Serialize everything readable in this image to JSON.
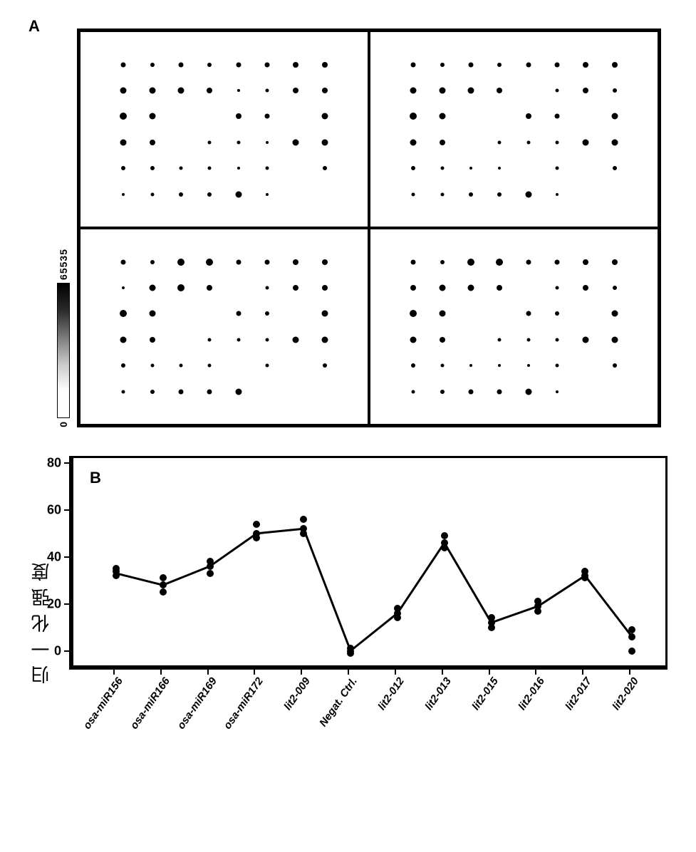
{
  "panelA": {
    "label": "A",
    "colorbar": {
      "min": "0",
      "max": "65535"
    },
    "grid": {
      "cols": 8,
      "rows": 6
    },
    "quadrants": [
      {
        "spots": [
          {
            "c": 0,
            "r": 0,
            "s": 7
          },
          {
            "c": 1,
            "r": 0,
            "s": 6
          },
          {
            "c": 2,
            "r": 0,
            "s": 7
          },
          {
            "c": 3,
            "r": 0,
            "s": 6
          },
          {
            "c": 4,
            "r": 0,
            "s": 7
          },
          {
            "c": 5,
            "r": 0,
            "s": 7
          },
          {
            "c": 6,
            "r": 0,
            "s": 8
          },
          {
            "c": 7,
            "r": 0,
            "s": 8
          },
          {
            "c": 0,
            "r": 1,
            "s": 9
          },
          {
            "c": 1,
            "r": 1,
            "s": 9
          },
          {
            "c": 2,
            "r": 1,
            "s": 9
          },
          {
            "c": 3,
            "r": 1,
            "s": 8
          },
          {
            "c": 4,
            "r": 1,
            "s": 4
          },
          {
            "c": 5,
            "r": 1,
            "s": 5
          },
          {
            "c": 6,
            "r": 1,
            "s": 8
          },
          {
            "c": 7,
            "r": 1,
            "s": 8
          },
          {
            "c": 0,
            "r": 2,
            "s": 10
          },
          {
            "c": 1,
            "r": 2,
            "s": 9
          },
          {
            "c": 4,
            "r": 2,
            "s": 8
          },
          {
            "c": 5,
            "r": 2,
            "s": 7
          },
          {
            "c": 7,
            "r": 2,
            "s": 9
          },
          {
            "c": 0,
            "r": 3,
            "s": 9
          },
          {
            "c": 1,
            "r": 3,
            "s": 8
          },
          {
            "c": 3,
            "r": 3,
            "s": 5
          },
          {
            "c": 4,
            "r": 3,
            "s": 5
          },
          {
            "c": 5,
            "r": 3,
            "s": 4
          },
          {
            "c": 6,
            "r": 3,
            "s": 9
          },
          {
            "c": 7,
            "r": 3,
            "s": 9
          },
          {
            "c": 0,
            "r": 4,
            "s": 6
          },
          {
            "c": 1,
            "r": 4,
            "s": 6
          },
          {
            "c": 2,
            "r": 4,
            "s": 5
          },
          {
            "c": 3,
            "r": 4,
            "s": 5
          },
          {
            "c": 4,
            "r": 4,
            "s": 4
          },
          {
            "c": 5,
            "r": 4,
            "s": 5
          },
          {
            "c": 7,
            "r": 4,
            "s": 6
          },
          {
            "c": 0,
            "r": 5,
            "s": 4
          },
          {
            "c": 1,
            "r": 5,
            "s": 5
          },
          {
            "c": 2,
            "r": 5,
            "s": 6
          },
          {
            "c": 3,
            "r": 5,
            "s": 6
          },
          {
            "c": 4,
            "r": 5,
            "s": 9
          },
          {
            "c": 5,
            "r": 5,
            "s": 4
          }
        ]
      },
      {
        "spots": [
          {
            "c": 0,
            "r": 0,
            "s": 7
          },
          {
            "c": 1,
            "r": 0,
            "s": 6
          },
          {
            "c": 2,
            "r": 0,
            "s": 7
          },
          {
            "c": 3,
            "r": 0,
            "s": 6
          },
          {
            "c": 4,
            "r": 0,
            "s": 7
          },
          {
            "c": 5,
            "r": 0,
            "s": 7
          },
          {
            "c": 6,
            "r": 0,
            "s": 8
          },
          {
            "c": 7,
            "r": 0,
            "s": 8
          },
          {
            "c": 0,
            "r": 1,
            "s": 9
          },
          {
            "c": 1,
            "r": 1,
            "s": 9
          },
          {
            "c": 2,
            "r": 1,
            "s": 9
          },
          {
            "c": 3,
            "r": 1,
            "s": 8
          },
          {
            "c": 5,
            "r": 1,
            "s": 5
          },
          {
            "c": 6,
            "r": 1,
            "s": 8
          },
          {
            "c": 7,
            "r": 1,
            "s": 6
          },
          {
            "c": 0,
            "r": 2,
            "s": 10
          },
          {
            "c": 1,
            "r": 2,
            "s": 9
          },
          {
            "c": 4,
            "r": 2,
            "s": 8
          },
          {
            "c": 5,
            "r": 2,
            "s": 7
          },
          {
            "c": 7,
            "r": 2,
            "s": 9
          },
          {
            "c": 0,
            "r": 3,
            "s": 9
          },
          {
            "c": 1,
            "r": 3,
            "s": 8
          },
          {
            "c": 3,
            "r": 3,
            "s": 5
          },
          {
            "c": 4,
            "r": 3,
            "s": 5
          },
          {
            "c": 5,
            "r": 3,
            "s": 5
          },
          {
            "c": 6,
            "r": 3,
            "s": 9
          },
          {
            "c": 7,
            "r": 3,
            "s": 9
          },
          {
            "c": 0,
            "r": 4,
            "s": 6
          },
          {
            "c": 1,
            "r": 4,
            "s": 5
          },
          {
            "c": 2,
            "r": 4,
            "s": 4
          },
          {
            "c": 3,
            "r": 4,
            "s": 4
          },
          {
            "c": 5,
            "r": 4,
            "s": 5
          },
          {
            "c": 7,
            "r": 4,
            "s": 6
          },
          {
            "c": 0,
            "r": 5,
            "s": 5
          },
          {
            "c": 1,
            "r": 5,
            "s": 5
          },
          {
            "c": 2,
            "r": 5,
            "s": 6
          },
          {
            "c": 3,
            "r": 5,
            "s": 6
          },
          {
            "c": 4,
            "r": 5,
            "s": 9
          },
          {
            "c": 5,
            "r": 5,
            "s": 4
          }
        ]
      },
      {
        "spots": [
          {
            "c": 0,
            "r": 0,
            "s": 7
          },
          {
            "c": 1,
            "r": 0,
            "s": 6
          },
          {
            "c": 2,
            "r": 0,
            "s": 10
          },
          {
            "c": 3,
            "r": 0,
            "s": 10
          },
          {
            "c": 4,
            "r": 0,
            "s": 7
          },
          {
            "c": 5,
            "r": 0,
            "s": 7
          },
          {
            "c": 6,
            "r": 0,
            "s": 8
          },
          {
            "c": 7,
            "r": 0,
            "s": 8
          },
          {
            "c": 0,
            "r": 1,
            "s": 4
          },
          {
            "c": 1,
            "r": 1,
            "s": 9
          },
          {
            "c": 2,
            "r": 1,
            "s": 10
          },
          {
            "c": 3,
            "r": 1,
            "s": 8
          },
          {
            "c": 5,
            "r": 1,
            "s": 5
          },
          {
            "c": 6,
            "r": 1,
            "s": 8
          },
          {
            "c": 7,
            "r": 1,
            "s": 8
          },
          {
            "c": 0,
            "r": 2,
            "s": 10
          },
          {
            "c": 1,
            "r": 2,
            "s": 9
          },
          {
            "c": 4,
            "r": 2,
            "s": 7
          },
          {
            "c": 5,
            "r": 2,
            "s": 6
          },
          {
            "c": 7,
            "r": 2,
            "s": 9
          },
          {
            "c": 0,
            "r": 3,
            "s": 9
          },
          {
            "c": 1,
            "r": 3,
            "s": 8
          },
          {
            "c": 3,
            "r": 3,
            "s": 5
          },
          {
            "c": 4,
            "r": 3,
            "s": 5
          },
          {
            "c": 5,
            "r": 3,
            "s": 5
          },
          {
            "c": 6,
            "r": 3,
            "s": 9
          },
          {
            "c": 7,
            "r": 3,
            "s": 9
          },
          {
            "c": 0,
            "r": 4,
            "s": 6
          },
          {
            "c": 1,
            "r": 4,
            "s": 5
          },
          {
            "c": 2,
            "r": 4,
            "s": 5
          },
          {
            "c": 3,
            "r": 4,
            "s": 5
          },
          {
            "c": 5,
            "r": 4,
            "s": 5
          },
          {
            "c": 7,
            "r": 4,
            "s": 6
          },
          {
            "c": 0,
            "r": 5,
            "s": 5
          },
          {
            "c": 1,
            "r": 5,
            "s": 6
          },
          {
            "c": 2,
            "r": 5,
            "s": 7
          },
          {
            "c": 3,
            "r": 5,
            "s": 7
          },
          {
            "c": 4,
            "r": 5,
            "s": 9
          }
        ]
      },
      {
        "spots": [
          {
            "c": 0,
            "r": 0,
            "s": 7
          },
          {
            "c": 1,
            "r": 0,
            "s": 6
          },
          {
            "c": 2,
            "r": 0,
            "s": 10
          },
          {
            "c": 3,
            "r": 0,
            "s": 10
          },
          {
            "c": 4,
            "r": 0,
            "s": 7
          },
          {
            "c": 5,
            "r": 0,
            "s": 7
          },
          {
            "c": 6,
            "r": 0,
            "s": 8
          },
          {
            "c": 7,
            "r": 0,
            "s": 8
          },
          {
            "c": 0,
            "r": 1,
            "s": 8
          },
          {
            "c": 1,
            "r": 1,
            "s": 9
          },
          {
            "c": 2,
            "r": 1,
            "s": 9
          },
          {
            "c": 3,
            "r": 1,
            "s": 8
          },
          {
            "c": 5,
            "r": 1,
            "s": 5
          },
          {
            "c": 6,
            "r": 1,
            "s": 8
          },
          {
            "c": 7,
            "r": 1,
            "s": 6
          },
          {
            "c": 0,
            "r": 2,
            "s": 10
          },
          {
            "c": 1,
            "r": 2,
            "s": 9
          },
          {
            "c": 4,
            "r": 2,
            "s": 7
          },
          {
            "c": 5,
            "r": 2,
            "s": 6
          },
          {
            "c": 7,
            "r": 2,
            "s": 9
          },
          {
            "c": 0,
            "r": 3,
            "s": 9
          },
          {
            "c": 1,
            "r": 3,
            "s": 8
          },
          {
            "c": 3,
            "r": 3,
            "s": 5
          },
          {
            "c": 4,
            "r": 3,
            "s": 5
          },
          {
            "c": 5,
            "r": 3,
            "s": 5
          },
          {
            "c": 6,
            "r": 3,
            "s": 9
          },
          {
            "c": 7,
            "r": 3,
            "s": 9
          },
          {
            "c": 0,
            "r": 4,
            "s": 6
          },
          {
            "c": 1,
            "r": 4,
            "s": 5
          },
          {
            "c": 2,
            "r": 4,
            "s": 4
          },
          {
            "c": 3,
            "r": 4,
            "s": 4
          },
          {
            "c": 4,
            "r": 4,
            "s": 4
          },
          {
            "c": 5,
            "r": 4,
            "s": 5
          },
          {
            "c": 7,
            "r": 4,
            "s": 6
          },
          {
            "c": 0,
            "r": 5,
            "s": 5
          },
          {
            "c": 1,
            "r": 5,
            "s": 6
          },
          {
            "c": 2,
            "r": 5,
            "s": 7
          },
          {
            "c": 3,
            "r": 5,
            "s": 7
          },
          {
            "c": 4,
            "r": 5,
            "s": 9
          },
          {
            "c": 5,
            "r": 5,
            "s": 4
          }
        ]
      }
    ]
  },
  "panelB": {
    "label": "B",
    "ylabel": "归一化强度",
    "ylim": [
      -5,
      80
    ],
    "yticks": [
      0,
      20,
      40,
      60,
      80
    ],
    "series": {
      "marker_size": 10,
      "line_width": 3,
      "color": "#000000",
      "line_points": [
        33,
        28,
        36,
        50,
        52,
        0,
        16,
        46,
        12,
        19,
        32,
        6
      ],
      "scatter": [
        [
          32,
          34,
          35
        ],
        [
          25,
          28,
          31
        ],
        [
          33,
          36,
          38
        ],
        [
          48,
          50,
          54
        ],
        [
          50,
          52,
          56
        ],
        [
          -1,
          0,
          1
        ],
        [
          14,
          16,
          18
        ],
        [
          44,
          46,
          49
        ],
        [
          10,
          12,
          14
        ],
        [
          17,
          19,
          21
        ],
        [
          31,
          32,
          34
        ],
        [
          0,
          6,
          9
        ]
      ]
    },
    "xlabels": [
      "osa-miR156",
      "osa-miR166",
      "osa-miR169",
      "osa-miR172",
      "lit2-009",
      "Negat. Ctrl.",
      "lit2-012",
      "lit2-013",
      "lit2-015",
      "lit2-016",
      "lit2-017",
      "lit2-020"
    ]
  },
  "style": {
    "bg": "#ffffff",
    "fg": "#000000",
    "axis_width": 3,
    "font_size_axis": 18
  }
}
